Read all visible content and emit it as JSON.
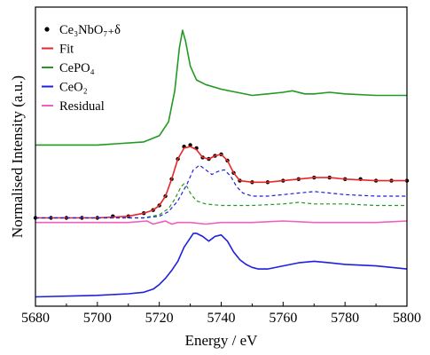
{
  "chart_data": {
    "type": "line",
    "xlabel": "Energy / eV",
    "ylabel": "Normalised Intensity (a.u.)",
    "xlim": [
      5680,
      5800
    ],
    "xticks": [
      5680,
      5700,
      5720,
      5740,
      5760,
      5780,
      5800
    ],
    "y_ticks_shown": false,
    "grid": false,
    "legend_position": "top-left",
    "legend": [
      {
        "label": "Ce₃NbO₇₊δ",
        "marker": "dot",
        "color": "#000000"
      },
      {
        "label": "Fit",
        "marker": "line",
        "color": "#e8262a"
      },
      {
        "label": "CePO₄",
        "marker": "line",
        "color": "#229922"
      },
      {
        "label": "CeO₂",
        "marker": "line",
        "color": "#1f1fe0"
      },
      {
        "label": "Residual",
        "marker": "line",
        "color": "#ee5fbf"
      }
    ],
    "series": [
      {
        "name": "CePO₄",
        "color": "#229922",
        "style": "solid",
        "x": [
          5680,
          5700,
          5715,
          5720,
          5723,
          5725,
          5726.5,
          5727.5,
          5728.5,
          5730,
          5732,
          5735,
          5740,
          5745,
          5750,
          5755,
          5760,
          5763,
          5767,
          5770,
          5775,
          5780,
          5790,
          5800
        ],
        "y": [
          1.47,
          1.47,
          1.49,
          1.53,
          1.62,
          1.82,
          2.1,
          2.21,
          2.14,
          1.98,
          1.89,
          1.86,
          1.83,
          1.81,
          1.79,
          1.8,
          1.81,
          1.82,
          1.8,
          1.8,
          1.81,
          1.8,
          1.79,
          1.79
        ]
      },
      {
        "name": "Ce₃NbO₇₊δ",
        "color": "#000000",
        "style": "points",
        "x": [
          5680,
          5685,
          5690,
          5695,
          5700,
          5705,
          5710,
          5715,
          5718,
          5720,
          5722,
          5724,
          5726,
          5728,
          5730,
          5732,
          5734,
          5736,
          5738,
          5740,
          5742,
          5744,
          5746,
          5750,
          5755,
          5760,
          5765,
          5770,
          5775,
          5780,
          5785,
          5790,
          5795,
          5800
        ],
        "y": [
          1.0,
          1.0,
          1.0,
          1.0,
          1.0,
          1.01,
          1.01,
          1.03,
          1.05,
          1.08,
          1.14,
          1.25,
          1.38,
          1.46,
          1.47,
          1.45,
          1.39,
          1.38,
          1.4,
          1.41,
          1.37,
          1.29,
          1.24,
          1.23,
          1.23,
          1.24,
          1.25,
          1.26,
          1.26,
          1.25,
          1.25,
          1.24,
          1.24,
          1.24
        ]
      },
      {
        "name": "Fit",
        "color": "#e8262a",
        "style": "solid",
        "x": [
          5680,
          5700,
          5710,
          5715,
          5718,
          5720,
          5722,
          5724,
          5726,
          5728,
          5730,
          5732,
          5734,
          5736,
          5738,
          5740,
          5742,
          5744,
          5746,
          5750,
          5755,
          5760,
          5765,
          5770,
          5775,
          5780,
          5790,
          5800
        ],
        "y": [
          1.0,
          1.0,
          1.01,
          1.03,
          1.05,
          1.08,
          1.14,
          1.25,
          1.38,
          1.45,
          1.46,
          1.44,
          1.39,
          1.38,
          1.4,
          1.41,
          1.37,
          1.29,
          1.24,
          1.23,
          1.23,
          1.24,
          1.25,
          1.26,
          1.26,
          1.25,
          1.24,
          1.24
        ]
      },
      {
        "name": "CePO₄ component",
        "color": "#229922",
        "style": "dashed",
        "x": [
          5680,
          5715,
          5720,
          5723,
          5725,
          5727,
          5728,
          5729,
          5730,
          5732,
          5735,
          5740,
          5750,
          5760,
          5765,
          5770,
          5780,
          5790,
          5800
        ],
        "y": [
          1.0,
          1.0,
          1.02,
          1.06,
          1.12,
          1.2,
          1.22,
          1.2,
          1.16,
          1.11,
          1.09,
          1.08,
          1.08,
          1.09,
          1.1,
          1.09,
          1.09,
          1.08,
          1.08
        ]
      },
      {
        "name": "CeO₂ component",
        "color": "#1f1fe0",
        "style": "dashed",
        "x": [
          5680,
          5715,
          5720,
          5723,
          5726,
          5729,
          5731,
          5733,
          5735,
          5737,
          5739,
          5741,
          5743,
          5745,
          5747,
          5750,
          5755,
          5760,
          5765,
          5770,
          5775,
          5780,
          5790,
          5800
        ],
        "y": [
          1.0,
          1.0,
          1.01,
          1.04,
          1.11,
          1.22,
          1.31,
          1.34,
          1.31,
          1.28,
          1.3,
          1.31,
          1.27,
          1.2,
          1.16,
          1.14,
          1.14,
          1.15,
          1.16,
          1.17,
          1.16,
          1.15,
          1.14,
          1.14
        ]
      },
      {
        "name": "Residual",
        "color": "#ee5fbf",
        "style": "solid",
        "x": [
          5680,
          5690,
          5700,
          5710,
          5716,
          5718,
          5720,
          5722,
          5724,
          5726,
          5730,
          5735,
          5740,
          5745,
          5750,
          5760,
          5770,
          5780,
          5790,
          5800
        ],
        "y": [
          0.97,
          0.97,
          0.97,
          0.97,
          0.98,
          0.96,
          0.97,
          0.98,
          0.96,
          0.97,
          0.97,
          0.96,
          0.97,
          0.97,
          0.97,
          0.98,
          0.97,
          0.97,
          0.97,
          0.98
        ]
      },
      {
        "name": "CeO₂",
        "color": "#1f1fe0",
        "style": "solid",
        "x": [
          5680,
          5700,
          5710,
          5715,
          5718,
          5720,
          5722,
          5724,
          5726,
          5728,
          5730,
          5731,
          5732,
          5734,
          5736,
          5738,
          5740,
          5742,
          5744,
          5746,
          5748,
          5750,
          5752,
          5755,
          5760,
          5765,
          5770,
          5775,
          5780,
          5790,
          5800
        ],
        "y": [
          0.49,
          0.5,
          0.51,
          0.52,
          0.54,
          0.57,
          0.61,
          0.66,
          0.72,
          0.81,
          0.87,
          0.9,
          0.9,
          0.88,
          0.85,
          0.88,
          0.89,
          0.85,
          0.78,
          0.73,
          0.7,
          0.68,
          0.67,
          0.67,
          0.69,
          0.71,
          0.72,
          0.71,
          0.7,
          0.69,
          0.67
        ]
      }
    ]
  }
}
